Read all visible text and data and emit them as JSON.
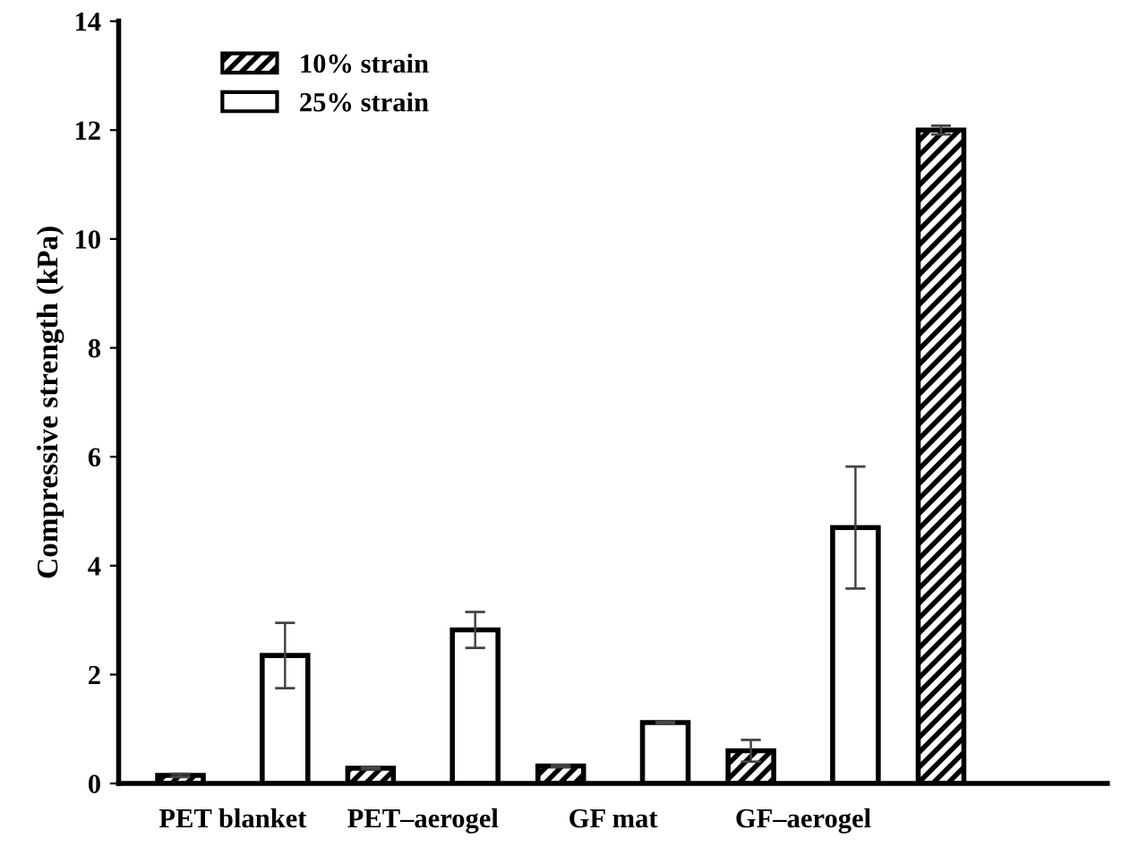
{
  "chart_data": {
    "type": "bar",
    "ylabel": "Compressive strength (kPa)",
    "categories": [
      "PET blanket",
      "PET–aerogel",
      "GF mat",
      "GF–aerogel",
      null
    ],
    "series": [
      {
        "name": "10% strain",
        "color": "#000000",
        "values": [
          0.15,
          0.28,
          0.32,
          0.6,
          12.0
        ],
        "errors": [
          0.03,
          0.02,
          0.02,
          0.2,
          0.08
        ]
      },
      {
        "name": "25% strain",
        "color": "#000000",
        "values": [
          2.35,
          2.82,
          1.12,
          4.7,
          null
        ],
        "errors": [
          0.6,
          0.33,
          0.02,
          1.12,
          null
        ]
      }
    ],
    "ylim": [
      0,
      14
    ],
    "yticks": [
      0,
      2,
      4,
      6,
      8,
      10,
      12,
      14
    ],
    "grid": false,
    "legend": "top left"
  }
}
